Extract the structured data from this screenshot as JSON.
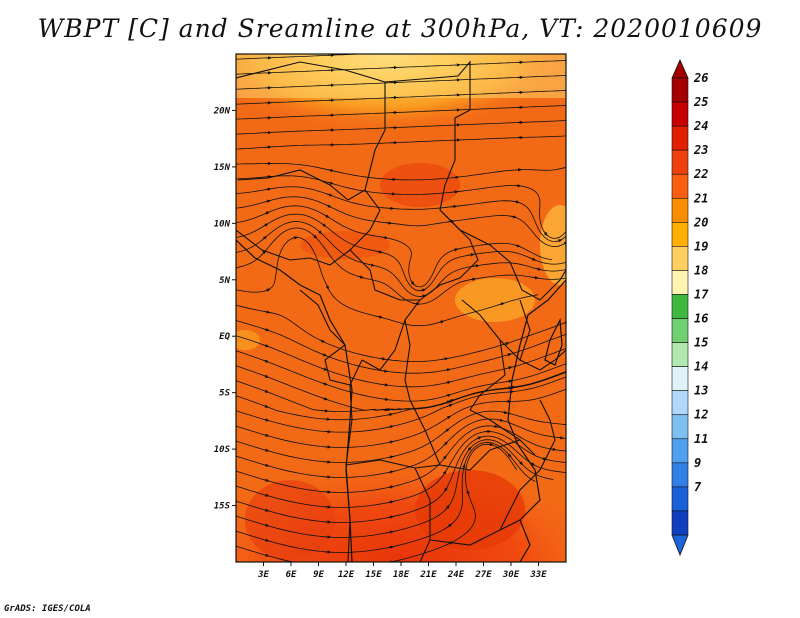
{
  "title": "WBPT [C] and Sreamline at 300hPa, VT: 2020010609",
  "footer": "GrADS: IGES/COLA",
  "map": {
    "lon_range": [
      0,
      36
    ],
    "lat_range": [
      -20,
      25
    ],
    "lat_ticks": [
      {
        "value": 20,
        "label": "20N"
      },
      {
        "value": 15,
        "label": "15N"
      },
      {
        "value": 10,
        "label": "10N"
      },
      {
        "value": 5,
        "label": "5N"
      },
      {
        "value": 0,
        "label": "EQ"
      },
      {
        "value": -5,
        "label": "5S"
      },
      {
        "value": -10,
        "label": "10S"
      },
      {
        "value": -15,
        "label": "15S"
      }
    ],
    "lon_ticks": [
      {
        "value": 3,
        "label": "3E"
      },
      {
        "value": 6,
        "label": "6E"
      },
      {
        "value": 9,
        "label": "9E"
      },
      {
        "value": 12,
        "label": "12E"
      },
      {
        "value": 15,
        "label": "15E"
      },
      {
        "value": 18,
        "label": "18E"
      },
      {
        "value": 21,
        "label": "21E"
      },
      {
        "value": 24,
        "label": "24E"
      },
      {
        "value": 27,
        "label": "27E"
      },
      {
        "value": 30,
        "label": "30E"
      },
      {
        "value": 33,
        "label": "33E"
      }
    ],
    "variable": "WBPT",
    "units": "C",
    "level": "300hPa",
    "valid_time": "2020010609"
  },
  "colorbar": {
    "labels": [
      "26",
      "25",
      "24",
      "23",
      "22",
      "21",
      "20",
      "19",
      "18",
      "17",
      "16",
      "15",
      "14",
      "13",
      "12",
      "11",
      "9",
      "7"
    ],
    "colors": [
      "#a50000",
      "#c80000",
      "#e02000",
      "#f04010",
      "#f86010",
      "#fa8c00",
      "#ffb000",
      "#ffd060",
      "#fff4b0",
      "#40b840",
      "#70d070",
      "#b0e8b0",
      "#e0f4f8",
      "#b0d8f8",
      "#80c0f0",
      "#50a0f0",
      "#3080e8",
      "#1a60d8",
      "#1040c0"
    ],
    "top_arrow_color": "#a50000",
    "bottom_arrow_color": "#1c64dc"
  }
}
